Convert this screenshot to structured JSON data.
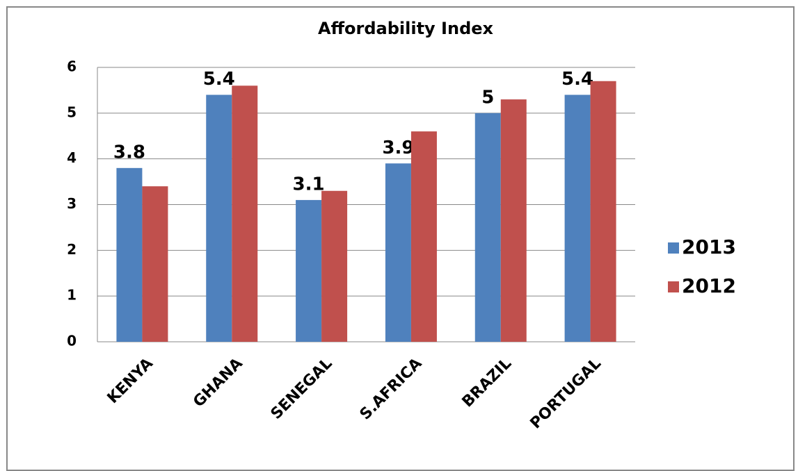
{
  "chart_data": {
    "type": "bar",
    "title": "Affordability Index",
    "categories": [
      "KENYA",
      "GHANA",
      "SENEGAL",
      "S.AFRICA",
      "BRAZIL",
      "PORTUGAL"
    ],
    "series": [
      {
        "name": "2013",
        "color": "#4f81bd",
        "values": [
          3.8,
          5.4,
          3.1,
          3.9,
          5,
          5.4
        ],
        "data_labels": true
      },
      {
        "name": "2012",
        "color": "#c0504d",
        "values": [
          3.4,
          5.6,
          3.3,
          4.6,
          5.3,
          5.7
        ],
        "data_labels": false
      }
    ],
    "ylim": [
      0,
      6
    ],
    "yticks": [
      0,
      1,
      2,
      3,
      4,
      5,
      6
    ],
    "grid": true,
    "legend": "right"
  }
}
